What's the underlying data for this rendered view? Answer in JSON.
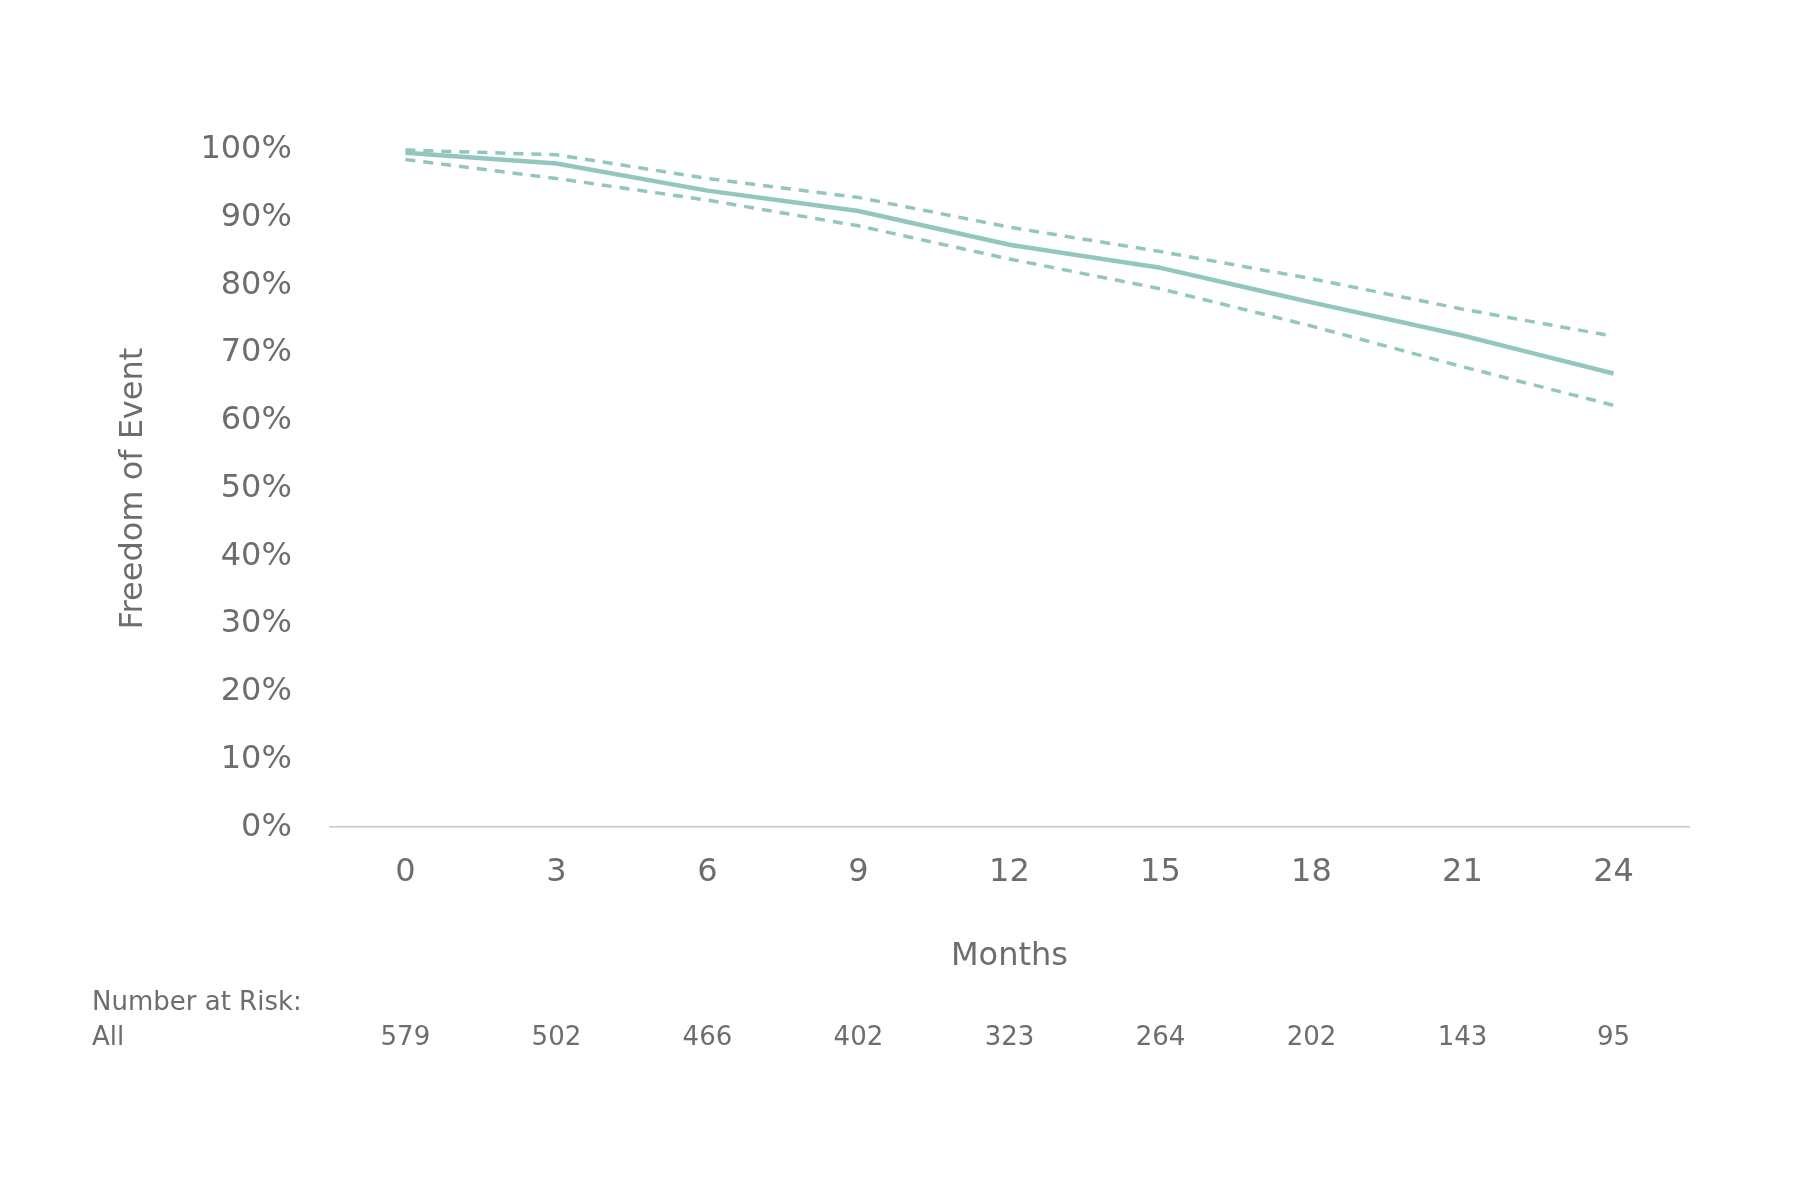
{
  "chart_data": {
    "type": "line",
    "xlabel": "Months",
    "ylabel": "Freedom of Event",
    "categories": [
      "0",
      "3",
      "6",
      "9",
      "12",
      "15",
      "18",
      "21",
      "24"
    ],
    "series": [
      {
        "color": "#93c6bc",
        "line_style": "solid",
        "values": [
          99.6,
          98,
          94,
          91,
          86,
          82.6,
          77.5,
          72.6,
          67
        ]
      },
      {
        "color": "#93c6bc",
        "line_style": "dashed",
        "values": [
          100,
          99.3,
          95.8,
          93,
          88.6,
          85,
          81,
          76.5,
          72.5
        ]
      },
      {
        "color": "#93c6bc",
        "line_style": "dashed",
        "values": [
          98.6,
          95.8,
          92.6,
          88.8,
          83.9,
          79.5,
          74,
          68,
          62.3
        ]
      }
    ],
    "ylim": [
      0,
      100
    ],
    "yticks": [
      {
        "value": 0,
        "label": "0%"
      },
      {
        "value": 10,
        "label": "10%"
      },
      {
        "value": 20,
        "label": "20%"
      },
      {
        "value": 30,
        "label": "30%"
      },
      {
        "value": 40,
        "label": "40%"
      },
      {
        "value": 50,
        "label": "50%"
      },
      {
        "value": 60,
        "label": "60%"
      },
      {
        "value": 70,
        "label": "70%"
      },
      {
        "value": 80,
        "label": "80%"
      },
      {
        "value": 90,
        "label": "90%"
      },
      {
        "value": 100,
        "label": "100%"
      }
    ],
    "grid": false,
    "legend": false,
    "marker": "none",
    "annotations": [
      "Number at Risk:",
      "All",
      "579",
      "502",
      "466",
      "402",
      "323",
      "264",
      "202",
      "143",
      "95"
    ]
  }
}
